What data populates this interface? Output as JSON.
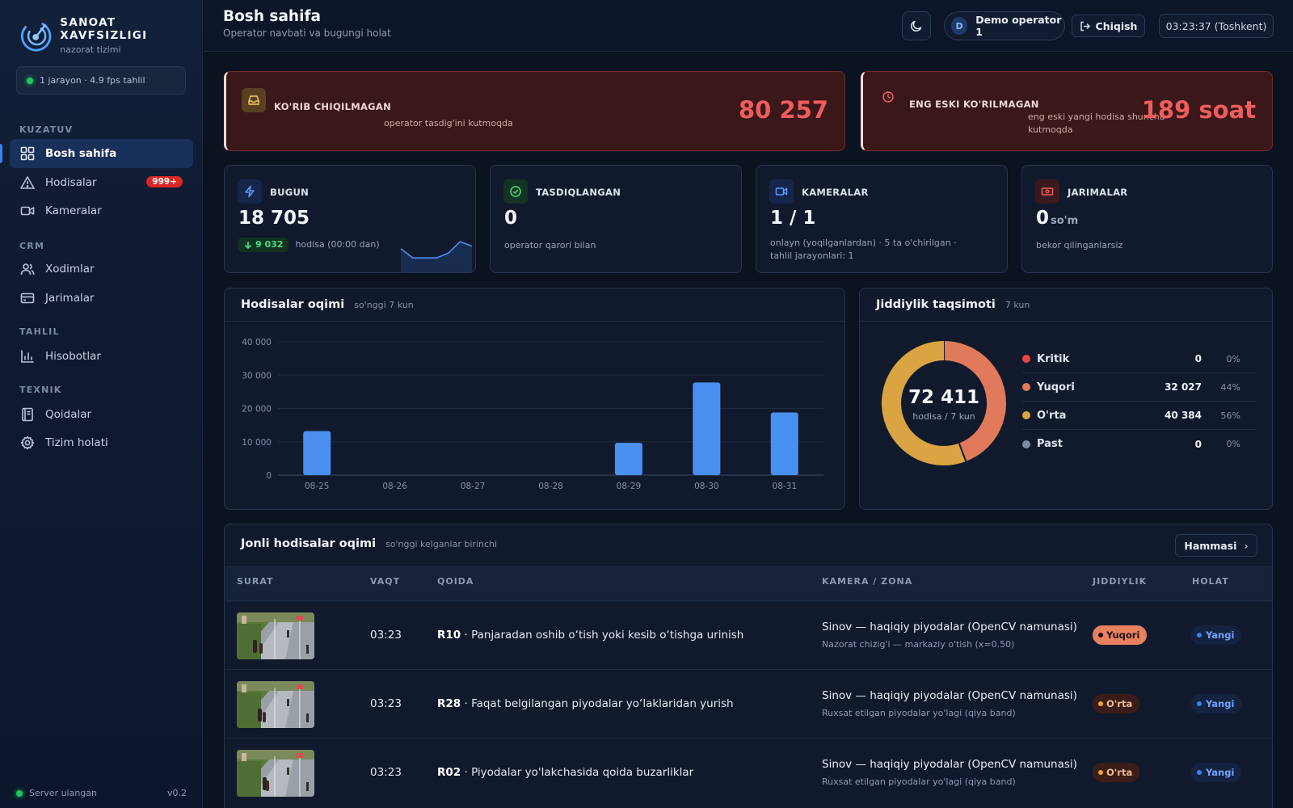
{
  "sidebar": {
    "brand_title": "SANOAT XAVFSIZLIGI",
    "brand_sub": "nazorat tizimi",
    "status": "1 jarayon · 4.9 fps tahlil",
    "sections": [
      "KUZATUV",
      "CRM",
      "TAHLIL",
      "TEXNIK"
    ],
    "items": [
      {
        "label": "Bosh sahifa",
        "icon": "grid-icon",
        "active": true
      },
      {
        "label": "Hodisalar",
        "icon": "warning-icon",
        "badge": "999+"
      },
      {
        "label": "Kameralar",
        "icon": "video-icon"
      },
      {
        "label": "Xodimlar",
        "icon": "users-icon"
      },
      {
        "label": "Jarimalar",
        "icon": "credit-card-icon"
      },
      {
        "label": "Hisobotlar",
        "icon": "bar-chart-icon"
      },
      {
        "label": "Qoidalar",
        "icon": "book-icon"
      },
      {
        "label": "Tizim holati",
        "icon": "gear-icon"
      }
    ],
    "footer_status": "Server ulangan",
    "version": "v0.2"
  },
  "header": {
    "title": "Bosh sahifa",
    "subtitle": "Operator navbati va bugungi holat",
    "theme_icon": "moon-icon",
    "user_initial": "D",
    "user_name": "Demo operator 1",
    "logout_label": "Chiqish",
    "clock": "03:23:37 (Toshkent)"
  },
  "alerts": {
    "unreviewed": {
      "label": "KO'RIB CHIQILMAGAN",
      "desc": "operator tasdig'ini kutmoqda",
      "value": "80 257"
    },
    "oldest": {
      "label": "ENG ESKI KO'RILMAGAN",
      "desc": "eng eski yangi hodisa shuncha kutmoqda",
      "value": "189 soat"
    }
  },
  "stats": {
    "today": {
      "label": "BUGUN",
      "value": "18 705",
      "trend": "9 032",
      "desc": "hodisa (00:00 dan)",
      "sparkline": [
        3,
        1,
        1,
        1,
        2,
        4.5,
        3.5
      ]
    },
    "confirmed": {
      "label": "TASDIQLANGAN",
      "value": "0",
      "desc": "operator qarori bilan"
    },
    "cameras": {
      "label": "KAMERALAR",
      "value": "1 / 1",
      "desc": "onlayn (yoqilganlardan) · 5 ta o'chirilgan · tahlil jarayonlari: 1"
    },
    "fines": {
      "label": "JARIMALAR",
      "value": "0",
      "unit": "so'm",
      "desc": "bekor qilinganlarsiz"
    }
  },
  "flow_panel": {
    "title": "Hodisalar oqimi",
    "sub": "so'nggi 7 kun"
  },
  "severity_panel": {
    "title": "Jiddiylik taqsimoti",
    "sub": "7 kun",
    "total": "72 411",
    "total_label": "hodisa / 7 kun",
    "items": [
      {
        "name": "Kritik",
        "count": "0",
        "pct": "0%",
        "color": "#ef4444"
      },
      {
        "name": "Yuqori",
        "count": "32 027",
        "pct": "44%",
        "color": "#e07a5a"
      },
      {
        "name": "O'rta",
        "count": "40 384",
        "pct": "56%",
        "color": "#d9a441"
      },
      {
        "name": "Past",
        "count": "0",
        "pct": "0%",
        "color": "#7f8ba3"
      }
    ]
  },
  "chart_data": {
    "type": "bar",
    "categories": [
      "08-25",
      "08-26",
      "08-27",
      "08-28",
      "08-29",
      "08-30",
      "08-31"
    ],
    "values": [
      13200,
      0,
      0,
      0,
      9700,
      27800,
      18800
    ],
    "yticks": [
      "0",
      "10 000",
      "20 000",
      "30 000",
      "40 000"
    ],
    "ylim": [
      0,
      40000
    ],
    "color": "#4a90f0",
    "grid": true
  },
  "live_feed": {
    "title": "Jonli hodisalar oqimi",
    "sub": "so'nggi kelganlar birinchi",
    "all_label": "Hammasi",
    "columns": [
      "SURAT",
      "VAQT",
      "QOIDA",
      "KAMERA / ZONA",
      "JIDDIYLIK",
      "HOLAT"
    ],
    "rows": [
      {
        "time": "03:23",
        "code": "R10",
        "rule": "Panjaradan oshib o‘tish yoki kesib o‘tishga urinish",
        "camera": "Sinov — haqiqiy piyodalar (OpenCV namunasi)",
        "zone": "Nazorat chizig'i — markaziy o'tish (x=0.50)",
        "severity": "Yuqori",
        "severity_level": "high",
        "status": "Yangi"
      },
      {
        "time": "03:23",
        "code": "R28",
        "rule": "Faqat belgilangan piyodalar yo‘laklaridan yurish",
        "camera": "Sinov — haqiqiy piyodalar (OpenCV namunasi)",
        "zone": "Ruxsat etilgan piyodalar yo'lagi (qiya band)",
        "severity": "O'rta",
        "severity_level": "mid",
        "status": "Yangi"
      },
      {
        "time": "03:23",
        "code": "R02",
        "rule": "Piyodalar yo'lakchasida qoida buzarliklar",
        "camera": "Sinov — haqiqiy piyodalar (OpenCV namunasi)",
        "zone": "Ruxsat etilgan piyodalar yo'lagi (qiya band)",
        "severity": "O'rta",
        "severity_level": "mid",
        "status": "Yangi"
      }
    ]
  }
}
